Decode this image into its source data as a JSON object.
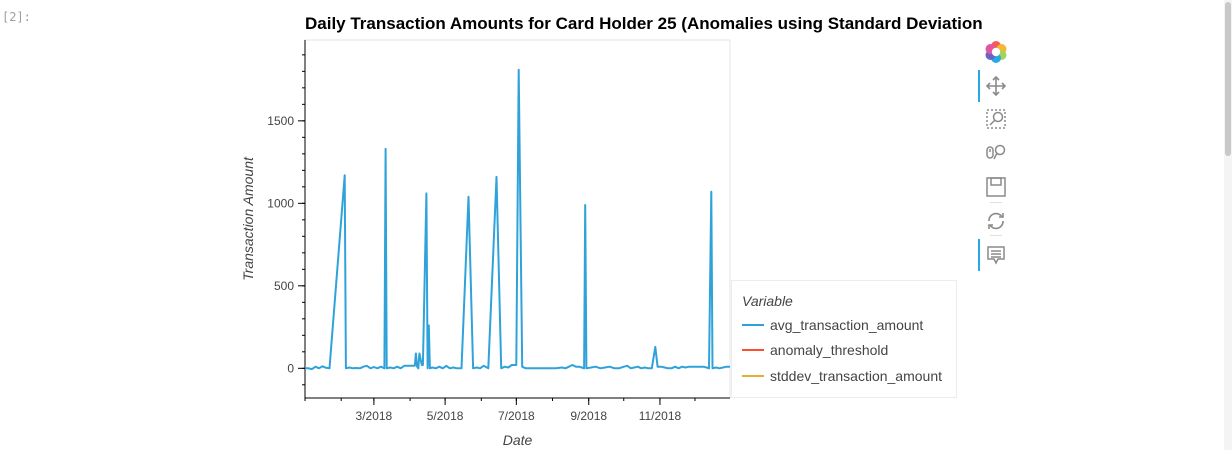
{
  "cell": {
    "prompt": "[2]:"
  },
  "chart_data": {
    "type": "line",
    "title": "Daily Transaction Amounts for Card Holder 25 (Anomalies using Standard Deviation",
    "xlabel": "Date",
    "ylabel": "Transaction Amount",
    "xlim": [
      "2018-01-01",
      "2018-12-31"
    ],
    "ylim": [
      -180,
      1990
    ],
    "yticks": [
      0,
      500,
      1000,
      1500
    ],
    "xticks": [
      "2018-03-01",
      "2018-05-01",
      "2018-07-01",
      "2018-09-01",
      "2018-11-01"
    ],
    "xtick_labels": [
      "3/2018",
      "5/2018",
      "7/2018",
      "9/2018",
      "11/2018"
    ],
    "legend": {
      "title": "Variable",
      "placement": "right",
      "entries": [
        {
          "name": "avg_transaction_amount",
          "color": "#30a2da"
        },
        {
          "name": "anomaly_threshold",
          "color": "#fc4f30"
        },
        {
          "name": "stddev_transaction_amount",
          "color": "#e5ae38"
        }
      ]
    },
    "series": [
      {
        "name": "avg_transaction_amount",
        "color": "#30a2da",
        "points": [
          [
            "2018-01-01",
            0
          ],
          [
            "2018-01-04",
            0
          ],
          [
            "2018-01-07",
            -5
          ],
          [
            "2018-01-10",
            10
          ],
          [
            "2018-01-13",
            0
          ],
          [
            "2018-01-16",
            12
          ],
          [
            "2018-01-19",
            3
          ],
          [
            "2018-01-22",
            0
          ],
          [
            "2018-02-04",
            1170
          ],
          [
            "2018-02-05",
            0
          ],
          [
            "2018-02-08",
            5
          ],
          [
            "2018-02-11",
            0
          ],
          [
            "2018-02-14",
            2
          ],
          [
            "2018-02-17",
            0
          ],
          [
            "2018-02-20",
            10
          ],
          [
            "2018-02-23",
            15
          ],
          [
            "2018-02-26",
            0
          ],
          [
            "2018-03-01",
            8
          ],
          [
            "2018-03-04",
            0
          ],
          [
            "2018-03-07",
            10
          ],
          [
            "2018-03-10",
            0
          ],
          [
            "2018-03-11",
            1330
          ],
          [
            "2018-03-12",
            0
          ],
          [
            "2018-03-15",
            5
          ],
          [
            "2018-03-18",
            0
          ],
          [
            "2018-03-21",
            10
          ],
          [
            "2018-03-24",
            0
          ],
          [
            "2018-03-27",
            15
          ],
          [
            "2018-03-30",
            15
          ],
          [
            "2018-04-02",
            15
          ],
          [
            "2018-04-05",
            15
          ],
          [
            "2018-04-06",
            90
          ],
          [
            "2018-04-07",
            10
          ],
          [
            "2018-04-08",
            0
          ],
          [
            "2018-04-09",
            90
          ],
          [
            "2018-04-11",
            20
          ],
          [
            "2018-04-12",
            20
          ],
          [
            "2018-04-15",
            1060
          ],
          [
            "2018-04-16",
            0
          ],
          [
            "2018-04-17",
            260
          ],
          [
            "2018-04-18",
            0
          ],
          [
            "2018-04-20",
            5
          ],
          [
            "2018-04-23",
            0
          ],
          [
            "2018-04-26",
            10
          ],
          [
            "2018-04-29",
            0
          ],
          [
            "2018-05-02",
            15
          ],
          [
            "2018-05-05",
            0
          ],
          [
            "2018-05-08",
            5
          ],
          [
            "2018-05-11",
            0
          ],
          [
            "2018-05-15",
            0
          ],
          [
            "2018-05-21",
            1040
          ],
          [
            "2018-05-25",
            0
          ],
          [
            "2018-05-28",
            5
          ],
          [
            "2018-05-31",
            0
          ],
          [
            "2018-06-03",
            15
          ],
          [
            "2018-06-07",
            0
          ],
          [
            "2018-06-14",
            1160
          ],
          [
            "2018-06-18",
            0
          ],
          [
            "2018-06-21",
            10
          ],
          [
            "2018-06-24",
            5
          ],
          [
            "2018-06-27",
            20
          ],
          [
            "2018-07-01",
            20
          ],
          [
            "2018-07-03",
            1810
          ],
          [
            "2018-07-06",
            10
          ],
          [
            "2018-07-09",
            0
          ],
          [
            "2018-07-12",
            0
          ],
          [
            "2018-07-15",
            0
          ],
          [
            "2018-07-20",
            0
          ],
          [
            "2018-07-25",
            0
          ],
          [
            "2018-07-30",
            0
          ],
          [
            "2018-08-04",
            0
          ],
          [
            "2018-08-09",
            5
          ],
          [
            "2018-08-12",
            0
          ],
          [
            "2018-08-15",
            10
          ],
          [
            "2018-08-18",
            20
          ],
          [
            "2018-08-21",
            10
          ],
          [
            "2018-08-24",
            10
          ],
          [
            "2018-08-26",
            5
          ],
          [
            "2018-08-28",
            0
          ],
          [
            "2018-08-29",
            990
          ],
          [
            "2018-08-30",
            0
          ],
          [
            "2018-09-03",
            5
          ],
          [
            "2018-09-07",
            10
          ],
          [
            "2018-09-11",
            0
          ],
          [
            "2018-09-15",
            5
          ],
          [
            "2018-09-19",
            10
          ],
          [
            "2018-09-23",
            0
          ],
          [
            "2018-09-27",
            0
          ],
          [
            "2018-10-01",
            10
          ],
          [
            "2018-10-04",
            15
          ],
          [
            "2018-10-07",
            0
          ],
          [
            "2018-10-10",
            5
          ],
          [
            "2018-10-13",
            10
          ],
          [
            "2018-10-16",
            0
          ],
          [
            "2018-10-19",
            5
          ],
          [
            "2018-10-22",
            0
          ],
          [
            "2018-10-25",
            0
          ],
          [
            "2018-10-28",
            130
          ],
          [
            "2018-10-30",
            10
          ],
          [
            "2018-11-02",
            10
          ],
          [
            "2018-11-05",
            5
          ],
          [
            "2018-11-08",
            0
          ],
          [
            "2018-11-11",
            0
          ],
          [
            "2018-11-14",
            10
          ],
          [
            "2018-11-17",
            0
          ],
          [
            "2018-11-20",
            10
          ],
          [
            "2018-11-23",
            5
          ],
          [
            "2018-11-26",
            10
          ],
          [
            "2018-11-29",
            10
          ],
          [
            "2018-12-02",
            10
          ],
          [
            "2018-12-05",
            10
          ],
          [
            "2018-12-08",
            10
          ],
          [
            "2018-12-11",
            5
          ],
          [
            "2018-12-13",
            0
          ],
          [
            "2018-12-15",
            1070
          ],
          [
            "2018-12-16",
            0
          ],
          [
            "2018-12-19",
            5
          ],
          [
            "2018-12-22",
            0
          ],
          [
            "2018-12-25",
            5
          ],
          [
            "2018-12-28",
            10
          ],
          [
            "2018-12-31",
            10
          ]
        ]
      }
    ]
  },
  "toolbar": {
    "tools": [
      {
        "name": "bokeh-logo-icon",
        "active": false
      },
      {
        "name": "pan-icon",
        "active": true
      },
      {
        "name": "box-zoom-icon",
        "active": false
      },
      {
        "name": "wheel-zoom-icon",
        "active": false
      },
      {
        "name": "save-icon",
        "active": false
      },
      {
        "name": "reset-icon",
        "active": false
      },
      {
        "name": "hover-icon",
        "active": true
      }
    ]
  }
}
